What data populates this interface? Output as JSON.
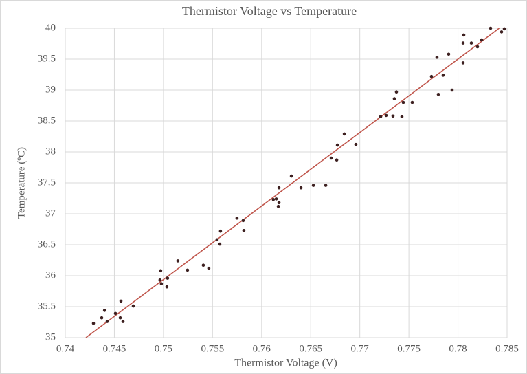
{
  "chart_data": {
    "type": "scatter",
    "title": "Thermistor Voltage vs Temperature",
    "x_label": "Thermistor Voltage (V)",
    "y_label": "Temperature (ºC)",
    "points": {
      "color": "#3d2020",
      "x": [
        0.74287,
        0.74371,
        0.744,
        0.74427,
        0.74511,
        0.74567,
        0.7456,
        0.74588,
        0.74693,
        0.74972,
        0.74965,
        0.74979,
        0.75042,
        0.75035,
        0.75147,
        0.75245,
        0.75406,
        0.75462,
        0.75546,
        0.75574,
        0.75581,
        0.75749,
        0.75812,
        0.75819,
        0.76119,
        0.76149,
        0.7617,
        0.76177,
        0.76177,
        0.76303,
        0.76401,
        0.76527,
        0.76653,
        0.76709,
        0.76765,
        0.76772,
        0.76842,
        0.7696,
        0.77212,
        0.77268,
        0.77338,
        0.77352,
        0.77373,
        0.77429,
        0.77443,
        0.77534,
        0.7773,
        0.77786,
        0.778,
        0.77849,
        0.77905,
        0.7794,
        0.78052,
        0.78052,
        0.78059,
        0.78136,
        0.78199,
        0.78241,
        0.78332,
        0.78444,
        0.78472
      ],
      "y": [
        35.23,
        35.32,
        35.44,
        35.26,
        35.39,
        35.59,
        35.32,
        35.26,
        35.51,
        36.08,
        35.93,
        35.87,
        35.96,
        35.82,
        36.24,
        36.09,
        36.17,
        36.12,
        36.58,
        36.51,
        36.72,
        36.93,
        36.89,
        36.73,
        37.23,
        37.24,
        37.12,
        37.18,
        37.42,
        37.61,
        37.42,
        37.46,
        37.46,
        37.9,
        37.87,
        38.11,
        38.29,
        38.12,
        38.57,
        38.59,
        38.58,
        38.86,
        38.97,
        38.57,
        38.8,
        38.8,
        39.22,
        39.53,
        38.93,
        39.24,
        39.58,
        39.0,
        39.44,
        39.76,
        39.89,
        39.76,
        39.7,
        39.81,
        40.0,
        39.94,
        39.99
      ]
    },
    "trendline": {
      "color": "#c0554b",
      "x": [
        0.7421,
        0.7842
      ],
      "y": [
        35,
        40
      ]
    },
    "xlim": [
      0.74,
      0.785
    ],
    "xticks": [
      0.74,
      0.745,
      0.75,
      0.755,
      0.76,
      0.765,
      0.77,
      0.775,
      0.78,
      0.785
    ],
    "ylim": [
      35,
      40
    ],
    "yticks": [
      35,
      35.5,
      36,
      36.5,
      37,
      37.5,
      38,
      38.5,
      39,
      39.5,
      40
    ],
    "grid": true
  }
}
